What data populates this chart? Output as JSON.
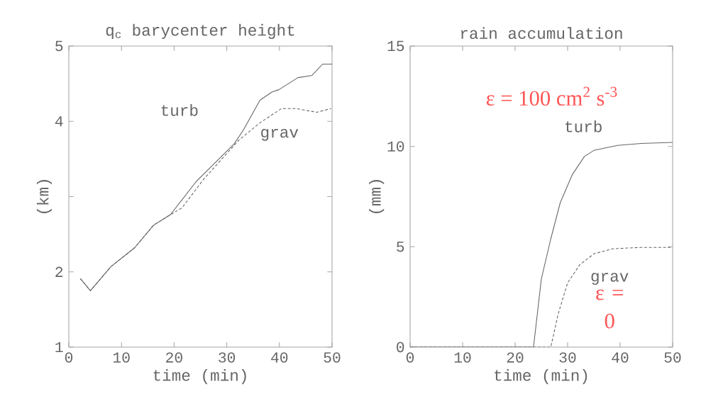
{
  "chart_data": [
    {
      "type": "line",
      "title": "q$_{c}$ barycenter height",
      "xlabel": "time (min)",
      "ylabel": "(km)",
      "xlim": [
        0,
        50
      ],
      "ylim": [
        1,
        5
      ],
      "xticks": [
        0,
        10,
        20,
        30,
        40,
        50
      ],
      "yticks": [
        1,
        2,
        {
          "value": 3,
          "label": null
        },
        4,
        5
      ],
      "series": [
        {
          "name": "turb",
          "color": "#666666",
          "line_style": "solid",
          "x": [
            2.2,
            4.1,
            8.0,
            12.5,
            16.1,
            19.3,
            24.2,
            31.4,
            33.2,
            36.3,
            38.6,
            39.9,
            43.5,
            46.2,
            48.2,
            50
          ],
          "values": [
            1.91,
            1.75,
            2.07,
            2.32,
            2.62,
            2.76,
            3.2,
            3.7,
            3.89,
            4.28,
            4.39,
            4.42,
            4.58,
            4.61,
            4.76,
            4.76
          ]
        },
        {
          "name": "grav",
          "color": "#666666",
          "line_style": "dashed",
          "x": [
            2.2,
            4.1,
            8.0,
            12.5,
            16.1,
            19.3,
            21.5,
            25.6,
            32.3,
            36.3,
            40.4,
            43.1,
            47.1,
            49.8
          ],
          "values": [
            1.91,
            1.75,
            2.07,
            2.32,
            2.62,
            2.76,
            2.85,
            3.23,
            3.75,
            3.98,
            4.17,
            4.17,
            4.12,
            4.17
          ]
        }
      ]
    },
    {
      "type": "line",
      "title": "rain accumulation",
      "xlabel": "time (min)",
      "ylabel": "(mm)",
      "xlim": [
        0,
        50
      ],
      "ylim": [
        0,
        15
      ],
      "xticks": [
        0,
        10,
        20,
        30,
        40,
        50
      ],
      "yticks": [
        0,
        5,
        10,
        15
      ],
      "annotations": [
        "ε = 100 cm$^{2}$ s$^{-3}$",
        "ε = 0"
      ],
      "series": [
        {
          "name": "turb",
          "color": "#666666",
          "line_style": "solid",
          "x": [
            0,
            23.5,
            25.0,
            26.8,
            28.6,
            30.9,
            33.2,
            35.0,
            39.5,
            44.0,
            50
          ],
          "values": [
            0,
            0,
            3.4,
            5.4,
            7.2,
            8.6,
            9.5,
            9.8,
            10.05,
            10.15,
            10.2
          ]
        },
        {
          "name": "grav",
          "color": "#666666",
          "line_style": "dashed",
          "x": [
            0,
            26.8,
            28.2,
            30.0,
            32.3,
            35.0,
            38.6,
            44.0,
            50
          ],
          "values": [
            0,
            0,
            1.65,
            3.2,
            4.1,
            4.65,
            4.9,
            4.97,
            4.97
          ]
        }
      ]
    }
  ]
}
